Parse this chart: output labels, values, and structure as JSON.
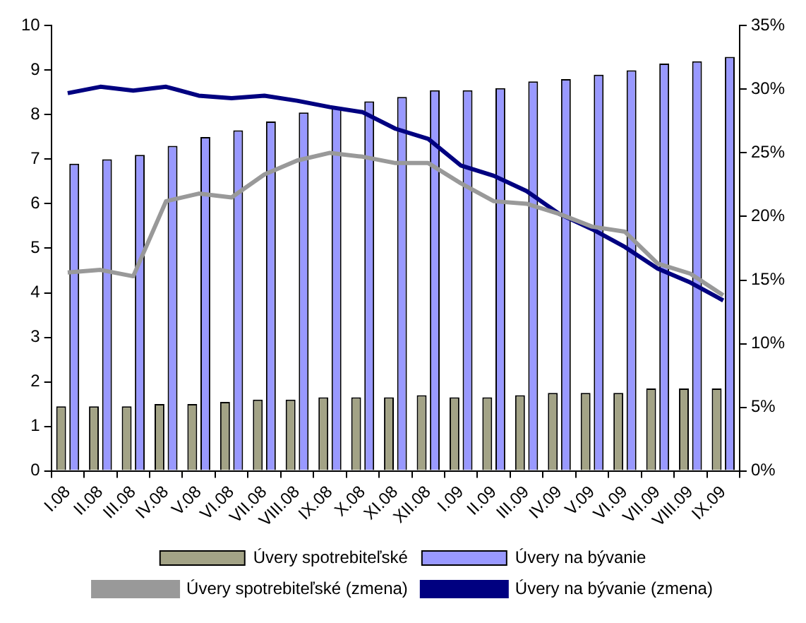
{
  "chart_data": {
    "type": "bar",
    "categories": [
      "I.08",
      "II.08",
      "III.08",
      "IV.08",
      "V.08",
      "VI.08",
      "VII.08",
      "VIII.08",
      "IX.08",
      "X.08",
      "XI.08",
      "XII.08",
      "I.09",
      "II.09",
      "III.09",
      "IV.09",
      "V.09",
      "VI.09",
      "VII.09",
      "VIII.09",
      "IX.09"
    ],
    "series": [
      {
        "name": "Úvery spotrebiteľské",
        "color": "#a3a386",
        "values": [
          1.45,
          1.45,
          1.45,
          1.5,
          1.5,
          1.55,
          1.6,
          1.6,
          1.65,
          1.65,
          1.65,
          1.7,
          1.65,
          1.65,
          1.7,
          1.75,
          1.75,
          1.75,
          1.85,
          1.85,
          1.85
        ]
      },
      {
        "name": "Úvery na bývanie",
        "color": "#9999ff",
        "values": [
          6.9,
          7.0,
          7.1,
          7.3,
          7.5,
          7.65,
          7.85,
          8.05,
          8.15,
          8.3,
          8.4,
          8.55,
          8.55,
          8.6,
          8.75,
          8.8,
          8.9,
          9.0,
          9.15,
          9.2,
          9.3
        ]
      },
      {
        "name": "Úvery spotrebiteľské (zmena)",
        "type": "line",
        "axis": "y2",
        "color": "#999999",
        "values": [
          15.6,
          15.8,
          15.3,
          21.2,
          21.8,
          21.5,
          23.3,
          24.4,
          25.0,
          24.7,
          24.2,
          24.2,
          22.6,
          21.2,
          21.0,
          20.2,
          19.2,
          18.8,
          16.3,
          15.5,
          13.8
        ]
      },
      {
        "name": "Úvery na bývanie (zmena)",
        "type": "line",
        "axis": "y2",
        "color": "#000080",
        "values": [
          29.7,
          30.2,
          29.9,
          30.2,
          29.5,
          29.3,
          29.5,
          29.1,
          28.6,
          28.2,
          26.9,
          26.1,
          24.0,
          23.2,
          22.0,
          20.2,
          19.0,
          17.6,
          15.9,
          14.8,
          13.4
        ]
      }
    ],
    "ylim": [
      0,
      10
    ],
    "yticks": [
      0,
      1,
      2,
      3,
      4,
      5,
      6,
      7,
      8,
      9,
      10
    ],
    "y2lim": [
      0,
      35
    ],
    "y2ticks": [
      {
        "value": 0,
        "label": "0%"
      },
      {
        "value": 5,
        "label": "5%"
      },
      {
        "value": 10,
        "label": "10%"
      },
      {
        "value": 15,
        "label": "15%"
      },
      {
        "value": 20,
        "label": "20%"
      },
      {
        "value": 25,
        "label": "25%"
      },
      {
        "value": 30,
        "label": "30%"
      },
      {
        "value": 35,
        "label": "35%"
      }
    ],
    "grid": false,
    "legend": "bottom",
    "marker": "none",
    "line_style": "solid"
  }
}
